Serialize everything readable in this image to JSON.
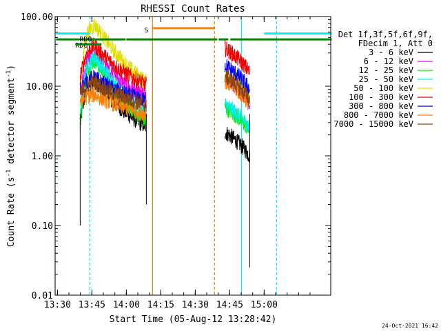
{
  "chart_data": {
    "type": "line",
    "title": "RHESSI Count Rates",
    "xlabel": "Start Time (05-Aug-12 13:28:42)",
    "ylabel_main": "Count Rate (s",
    "ylabel_sup1": "-1",
    "ylabel_mid": " detector segment",
    "ylabel_sup2": "-1",
    "ylabel_end": ")",
    "y_scale": "log",
    "ylim": [
      0.01,
      100
    ],
    "xlim_minutes": [
      13.4833,
      15.4833
    ],
    "x_ticks": [
      {
        "label": "13:30",
        "hour": 13.5
      },
      {
        "label": "13:45",
        "hour": 13.75
      },
      {
        "label": "14:00",
        "hour": 14.0
      },
      {
        "label": "14:15",
        "hour": 14.25
      },
      {
        "label": "14:30",
        "hour": 14.5
      },
      {
        "label": "14:45",
        "hour": 14.75
      },
      {
        "label": "15:00",
        "hour": 15.0
      }
    ],
    "y_ticks": [
      {
        "label": "100.00",
        "value": 100
      },
      {
        "label": "10.00",
        "value": 10
      },
      {
        "label": "1.00",
        "value": 1
      },
      {
        "label": "0.10",
        "value": 0.1
      },
      {
        "label": "0.01",
        "value": 0.01
      }
    ],
    "legend_header": [
      "Det 1f,3f,5f,6f,9f,",
      "FDecim 1, Att 0"
    ],
    "legend_placement": "right",
    "series": [
      {
        "name": "3 - 6 keV",
        "color": "#000000",
        "level_pre": 3.2,
        "level_post": 2.2,
        "peak": 13
      },
      {
        "name": "6 - 12 keV",
        "color": "#ee00ee",
        "level_pre": 9,
        "level_post": 13,
        "peak": 30
      },
      {
        "name": "12 - 25 keV",
        "color": "#00ee00",
        "level_pre": 3.0,
        "level_post": 5,
        "peak": 24
      },
      {
        "name": "25 - 50 keV",
        "color": "#00eeee",
        "level_pre": 4.5,
        "level_post": 5.5,
        "peak": 27
      },
      {
        "name": "50 - 100 keV",
        "color": "#e0e000",
        "level_pre": 12,
        "level_post": 15,
        "peak": 78
      },
      {
        "name": "100 - 300 keV",
        "color": "#ee0000",
        "level_pre": 14,
        "level_post": 35,
        "peak": 40
      },
      {
        "name": "300 - 800 keV",
        "color": "#0000ee",
        "level_pre": 9,
        "level_post": 20,
        "peak": 14
      },
      {
        "name": "800 - 7000 keV",
        "color": "#ff7f00",
        "level_pre": 6,
        "level_post": 12,
        "peak": 8
      },
      {
        "name": "7000 - 15000 keV",
        "color": "#8b4513",
        "level_pre": 8,
        "level_post": 14,
        "peak": 12
      }
    ],
    "segments": {
      "data_start_hour": 13.665,
      "gap_start_hour": 14.145,
      "gap_end_hour": 14.715,
      "data_end_hour": 14.895
    },
    "flags": [
      {
        "label": "RD6",
        "color": "#008000",
        "value": 47,
        "ranges": [
          [
            13.49,
            13.995
          ],
          [
            14.0,
            14.66
          ],
          [
            14.67,
            14.74
          ],
          [
            14.755,
            15.49
          ]
        ]
      },
      {
        "label": "RD0",
        "color": "#008000",
        "value": 40,
        "ranges": [
          [
            13.63,
            13.82
          ]
        ]
      },
      {
        "label": "",
        "color": "#00eeee",
        "value": 57,
        "ranges": [
          [
            13.49,
            13.73
          ],
          [
            15.0,
            15.49
          ]
        ]
      },
      {
        "label": "S",
        "color": "#ff7f00",
        "value": 68,
        "ranges": [
          [
            14.19,
            14.64
          ]
        ]
      }
    ],
    "vlines": [
      {
        "hour": 13.4833,
        "color": "#00eeee",
        "style": "solid"
      },
      {
        "hour": 13.735,
        "color": "#00eeee",
        "style": "dashed"
      },
      {
        "hour": 14.19,
        "color": "#ff7f00",
        "style": "solid"
      },
      {
        "hour": 14.64,
        "color": "#ff7f00",
        "style": "dashed"
      },
      {
        "hour": 14.835,
        "color": "#00eeee",
        "style": "solid"
      },
      {
        "hour": 15.09,
        "color": "#00eeee",
        "style": "dashed"
      }
    ],
    "grid": false
  },
  "footer": {
    "timestamp": "24-Oct-2021 16:42"
  }
}
